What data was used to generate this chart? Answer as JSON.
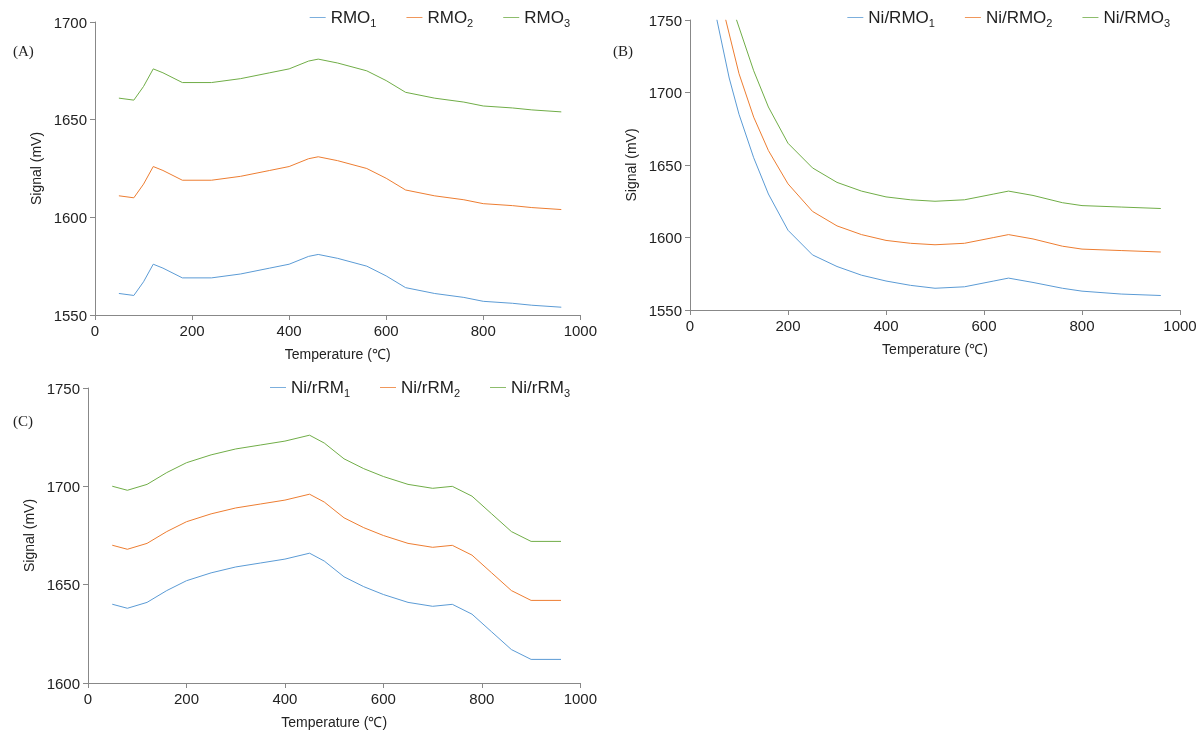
{
  "chart_data": [
    {
      "type": "line",
      "title": "(A)",
      "xlabel": "Temperature (℃)",
      "ylabel": "Signal (mV)",
      "xlim": [
        0,
        1000
      ],
      "xticks": [
        0,
        200,
        400,
        600,
        800,
        1000
      ],
      "ylim": [
        1550,
        1700
      ],
      "yticks": [
        1550,
        1600,
        1650,
        1700
      ],
      "grid": false,
      "legend": "top right",
      "marker": "none",
      "line_style": "solid",
      "series": [
        {
          "name": "RMO$_{1}$",
          "color": "#5b9bd5",
          "x": [
            50,
            80,
            100,
            120,
            140,
            180,
            240,
            300,
            360,
            400,
            440,
            460,
            500,
            560,
            600,
            640,
            700,
            760,
            800,
            860,
            900,
            960
          ],
          "values": [
            1561,
            1560,
            1567,
            1576,
            1574,
            1569,
            1569,
            1571,
            1574,
            1576,
            1580,
            1581,
            1579,
            1575,
            1570,
            1564,
            1561,
            1559,
            1557,
            1556,
            1555,
            1554
          ]
        },
        {
          "name": "RMO$_{2}$",
          "color": "#ed7d31",
          "x": [
            50,
            80,
            100,
            120,
            140,
            180,
            240,
            300,
            360,
            400,
            440,
            460,
            500,
            560,
            600,
            640,
            700,
            760,
            800,
            860,
            900,
            960
          ],
          "values": [
            1611,
            1610,
            1617,
            1626,
            1624,
            1619,
            1619,
            1621,
            1624,
            1626,
            1630,
            1631,
            1629,
            1625,
            1620,
            1614,
            1611,
            1609,
            1607,
            1606,
            1605,
            1604
          ]
        },
        {
          "name": "RMO$_{3}$",
          "color": "#70ad47",
          "x": [
            50,
            80,
            100,
            120,
            140,
            180,
            240,
            300,
            360,
            400,
            440,
            460,
            500,
            560,
            600,
            640,
            700,
            760,
            800,
            860,
            900,
            960
          ],
          "values": [
            1661,
            1660,
            1667,
            1676,
            1674,
            1669,
            1669,
            1671,
            1674,
            1676,
            1680,
            1681,
            1679,
            1675,
            1670,
            1664,
            1661,
            1659,
            1657,
            1656,
            1655,
            1654
          ]
        }
      ]
    },
    {
      "type": "line",
      "title": "(B)",
      "xlabel": "Temperature (℃)",
      "ylabel": "Signal (mV)",
      "xlim": [
        0,
        1000
      ],
      "xticks": [
        0,
        200,
        400,
        600,
        800,
        1000
      ],
      "ylim": [
        1550,
        1750
      ],
      "yticks": [
        1550,
        1600,
        1650,
        1700,
        1750
      ],
      "grid": false,
      "legend": "top right",
      "marker": "none",
      "line_style": "solid",
      "series": [
        {
          "name": "Ni/RMO$_{1}$",
          "color": "#5b9bd5",
          "x": [
            55,
            80,
            100,
            130,
            160,
            200,
            250,
            300,
            350,
            400,
            450,
            500,
            560,
            620,
            650,
            700,
            760,
            800,
            880,
            960
          ],
          "values": [
            1750,
            1710,
            1685,
            1655,
            1630,
            1605,
            1588,
            1580,
            1574,
            1570,
            1567,
            1565,
            1566,
            1570,
            1572,
            1569,
            1565,
            1563,
            1561,
            1560
          ]
        },
        {
          "name": "Ni/RMO$_{2}$",
          "color": "#ed7d31",
          "x": [
            73,
            100,
            130,
            160,
            200,
            250,
            300,
            350,
            400,
            450,
            500,
            560,
            620,
            650,
            700,
            760,
            800,
            880,
            960
          ],
          "values": [
            1750,
            1713,
            1683,
            1660,
            1637,
            1618,
            1608,
            1602,
            1598,
            1596,
            1595,
            1596,
            1600,
            1602,
            1599,
            1594,
            1592,
            1591,
            1590
          ]
        },
        {
          "name": "Ni/RMO$_{3}$",
          "color": "#70ad47",
          "x": [
            95,
            130,
            160,
            200,
            250,
            300,
            350,
            400,
            450,
            500,
            560,
            620,
            650,
            700,
            760,
            800,
            880,
            960
          ],
          "values": [
            1750,
            1715,
            1690,
            1665,
            1648,
            1638,
            1632,
            1628,
            1626,
            1625,
            1626,
            1630,
            1632,
            1629,
            1624,
            1622,
            1621,
            1620
          ]
        }
      ]
    },
    {
      "type": "line",
      "title": "(C)",
      "xlabel": "Temperature (℃)",
      "ylabel": "Signal (mV)",
      "xlim": [
        0,
        1000
      ],
      "xticks": [
        0,
        200,
        400,
        600,
        800,
        1000
      ],
      "ylim": [
        1600,
        1750
      ],
      "yticks": [
        1600,
        1650,
        1700,
        1750
      ],
      "grid": false,
      "legend": "top right",
      "marker": "none",
      "line_style": "solid",
      "series": [
        {
          "name": "Ni/rRM$_{1}$",
          "color": "#5b9bd5",
          "x": [
            50,
            80,
            120,
            160,
            200,
            250,
            300,
            350,
            400,
            450,
            480,
            520,
            560,
            600,
            650,
            700,
            740,
            780,
            820,
            860,
            900,
            960
          ],
          "values": [
            1640,
            1638,
            1641,
            1647,
            1652,
            1656,
            1659,
            1661,
            1663,
            1666,
            1662,
            1654,
            1649,
            1645,
            1641,
            1639,
            1640,
            1635,
            1626,
            1617,
            1612,
            1612
          ]
        },
        {
          "name": "Ni/rRM$_{2}$",
          "color": "#ed7d31",
          "x": [
            50,
            80,
            120,
            160,
            200,
            250,
            300,
            350,
            400,
            450,
            480,
            520,
            560,
            600,
            650,
            700,
            740,
            780,
            820,
            860,
            900,
            960
          ],
          "values": [
            1670,
            1668,
            1671,
            1677,
            1682,
            1686,
            1689,
            1691,
            1693,
            1696,
            1692,
            1684,
            1679,
            1675,
            1671,
            1669,
            1670,
            1665,
            1656,
            1647,
            1642,
            1642
          ]
        },
        {
          "name": "Ni/rRM$_{3}$",
          "color": "#70ad47",
          "x": [
            50,
            80,
            120,
            160,
            200,
            250,
            300,
            350,
            400,
            450,
            480,
            520,
            560,
            600,
            650,
            700,
            740,
            780,
            820,
            860,
            900,
            960
          ],
          "values": [
            1700,
            1698,
            1701,
            1707,
            1712,
            1716,
            1719,
            1721,
            1723,
            1726,
            1722,
            1714,
            1709,
            1705,
            1701,
            1699,
            1700,
            1695,
            1686,
            1677,
            1672,
            1672
          ]
        }
      ]
    }
  ]
}
